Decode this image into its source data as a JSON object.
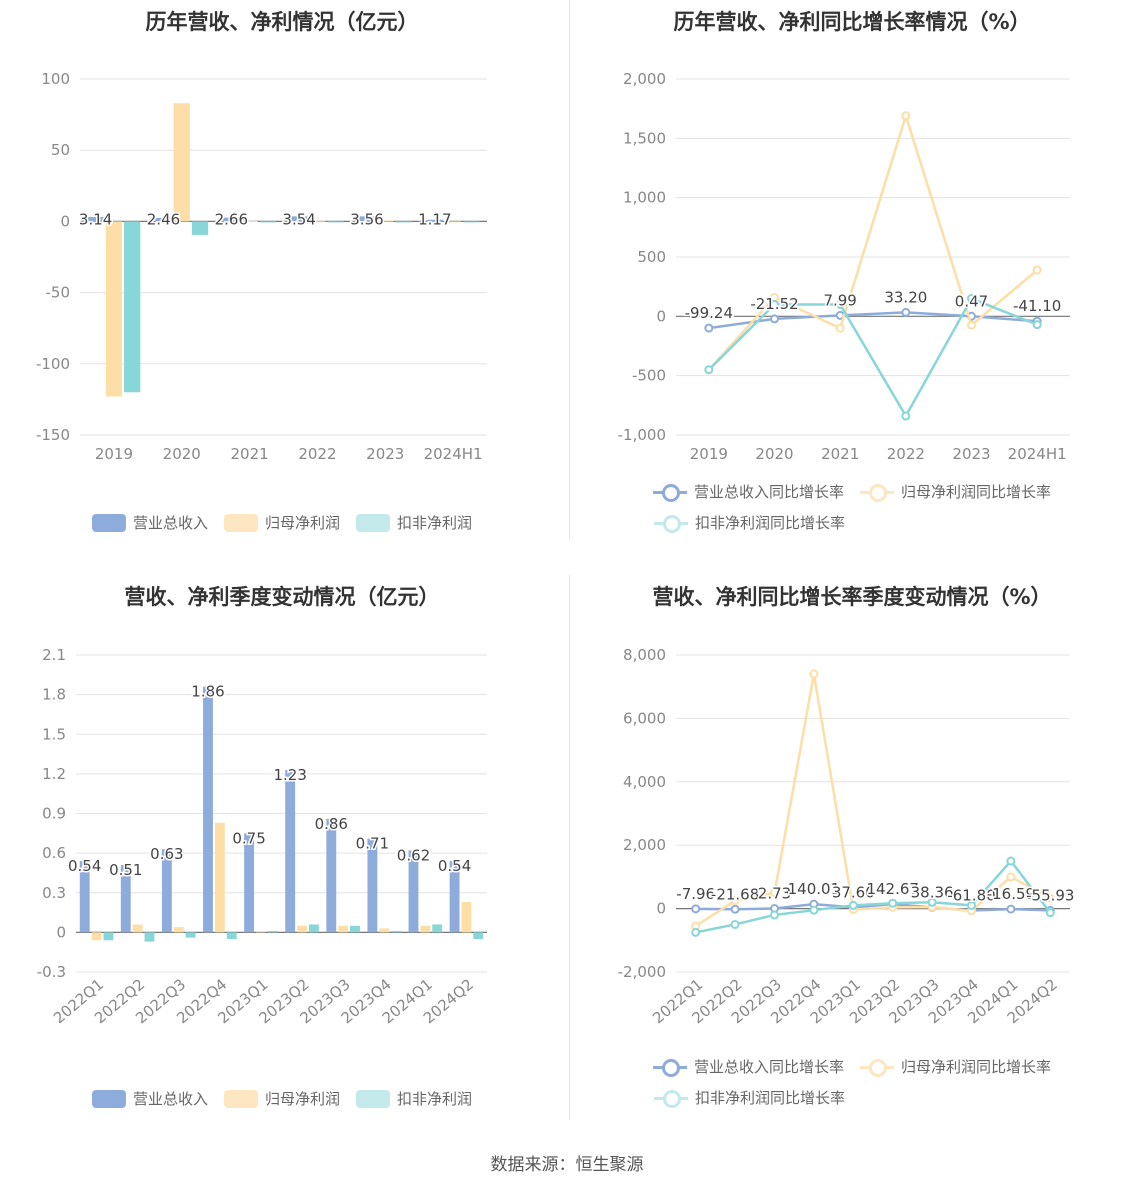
{
  "source": "数据来源：恒生聚源",
  "colors": {
    "revenue": "#8eacdb",
    "parent": "#fddea6",
    "deducted": "#87d6d8"
  },
  "legend": {
    "bars": [
      "营业总收入",
      "归母净利润",
      "扣非净利润"
    ],
    "lines": [
      "营业总收入同比增长率",
      "归母净利润同比增长率",
      "扣非净利润同比增长率"
    ]
  },
  "chart_data": [
    {
      "type": "bar",
      "title": "历年营收、净利情况（亿元）",
      "categories": [
        "2019",
        "2020",
        "2021",
        "2022",
        "2023",
        "2024H1"
      ],
      "ylim": [
        -150,
        100
      ],
      "yticks": [
        "100",
        "50",
        "0",
        "-50",
        "-100",
        "-150"
      ],
      "series": [
        {
          "name": "营业总收入",
          "values": [
            3.14,
            2.46,
            2.66,
            3.54,
            3.56,
            1.17
          ]
        },
        {
          "name": "归母净利润",
          "values": [
            -123,
            83,
            0.3,
            0.5,
            0.6,
            -0.3
          ]
        },
        {
          "name": "扣非净利润",
          "values": [
            -120,
            -9.5,
            -0.4,
            -0.5,
            -0.6,
            -0.4
          ]
        }
      ],
      "labels": [
        "3.14",
        "2.46",
        "2.66",
        "3.54",
        "3.56",
        "1.17"
      ]
    },
    {
      "type": "line",
      "title": "历年营收、净利同比增长率情况（%）",
      "categories": [
        "2019",
        "2020",
        "2021",
        "2022",
        "2023",
        "2024H1"
      ],
      "ylim": [
        -1000,
        2000
      ],
      "yticks": [
        "2,000",
        "1,500",
        "1,000",
        "500",
        "0",
        "-500",
        "-1,000"
      ],
      "series": [
        {
          "name": "营业总收入同比增长率",
          "values": [
            -99.24,
            -21.52,
            7.99,
            33.2,
            0.47,
            -41.1
          ]
        },
        {
          "name": "归母净利润同比增长率",
          "values": [
            -450,
            160,
            -100,
            1690,
            -75,
            390
          ]
        },
        {
          "name": "扣非净利润同比增长率",
          "values": [
            -450,
            100,
            100,
            -840,
            150,
            -70
          ]
        }
      ],
      "labels": [
        "-99.24",
        "-21.52",
        "7.99",
        "33.20",
        "0.47",
        "-41.10"
      ]
    },
    {
      "type": "bar",
      "title": "营收、净利季度变动情况（亿元）",
      "categories": [
        "2022Q1",
        "2022Q2",
        "2022Q3",
        "2022Q4",
        "2023Q1",
        "2023Q2",
        "2023Q3",
        "2023Q4",
        "2024Q1",
        "2024Q2"
      ],
      "ylim": [
        -0.3,
        2.1
      ],
      "yticks": [
        "2.1",
        "1.8",
        "1.5",
        "1.2",
        "0.9",
        "0.6",
        "0.3",
        "0",
        "-0.3"
      ],
      "series": [
        {
          "name": "营业总收入",
          "values": [
            0.54,
            0.51,
            0.63,
            1.86,
            0.75,
            1.23,
            0.86,
            0.71,
            0.62,
            0.54
          ]
        },
        {
          "name": "归母净利润",
          "values": [
            -0.06,
            0.06,
            0.04,
            0.83,
            0.01,
            0.05,
            0.05,
            0.03,
            0.05,
            0.23
          ]
        },
        {
          "name": "扣非净利润",
          "values": [
            -0.06,
            -0.07,
            -0.04,
            -0.05,
            0.01,
            0.06,
            0.05,
            0.01,
            0.06,
            -0.05
          ]
        }
      ],
      "labels": [
        "0.54",
        "0.51",
        "0.63",
        "1.86",
        "0.75",
        "1.23",
        "0.86",
        "0.71",
        "0.62",
        "0.54"
      ]
    },
    {
      "type": "line",
      "title": "营收、净利同比增长率季度变动情况（%）",
      "categories": [
        "2022Q1",
        "2022Q2",
        "2022Q3",
        "2022Q4",
        "2023Q1",
        "2023Q2",
        "2023Q3",
        "2023Q4",
        "2024Q1",
        "2024Q2"
      ],
      "ylim": [
        -2000,
        8000
      ],
      "yticks": [
        "8,000",
        "6,000",
        "4,000",
        "2,000",
        "0",
        "-2,000"
      ],
      "series": [
        {
          "name": "营业总收入同比增长率",
          "values": [
            -7.96,
            -21.68,
            2.73,
            140.01,
            37.6,
            142.67,
            38.36,
            -61.8,
            -16.59,
            -55.93
          ]
        },
        {
          "name": "归母净利润同比增长率",
          "values": [
            -550,
            250,
            500,
            7400,
            -30,
            40,
            50,
            -70,
            1000,
            330
          ]
        },
        {
          "name": "扣非净利润同比增长率",
          "values": [
            -750,
            -500,
            -200,
            -50,
            100,
            170,
            200,
            100,
            1500,
            -130
          ]
        }
      ],
      "labels": [
        "-7.96",
        "-21.68",
        "2.73",
        "140.01",
        "37.60",
        "142.67",
        "38.36",
        "-61.80",
        "-16.59",
        "-55.93"
      ]
    }
  ]
}
